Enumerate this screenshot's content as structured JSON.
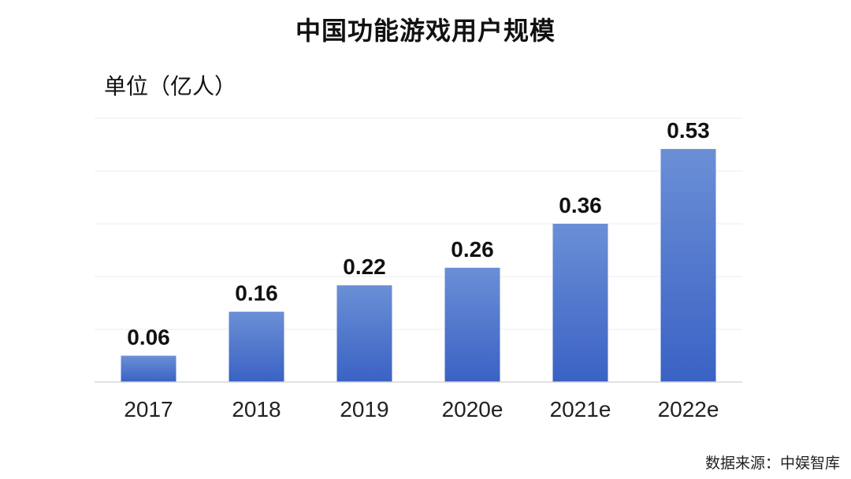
{
  "chart_data": {
    "type": "bar",
    "title": "中国功能游戏用户规模",
    "unit_label": "单位（亿人）",
    "categories": [
      "2017",
      "2018",
      "2019",
      "2020e",
      "2021e",
      "2022e"
    ],
    "values": [
      0.06,
      0.16,
      0.22,
      0.26,
      0.36,
      0.53
    ],
    "data_labels": [
      "0.06",
      "0.16",
      "0.22",
      "0.26",
      "0.36",
      "0.53"
    ],
    "ylim": [
      0,
      0.6
    ],
    "grid": true,
    "legend": "none",
    "bar_color_top": "#6b8fd6",
    "bar_color_bottom": "#3a62c4",
    "grid_color": "#eeeeee",
    "axis_color": "#d9d9d9"
  },
  "footer": {
    "source": "数据来源：中娱智库"
  }
}
